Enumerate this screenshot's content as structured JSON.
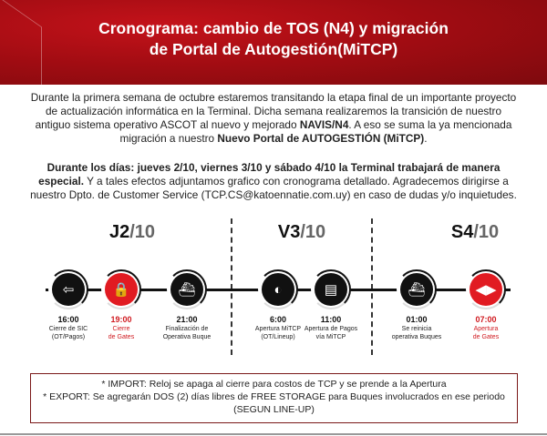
{
  "header": {
    "title_line1": "Cronograma: cambio de TOS (N4) y migración",
    "title_line2": "de Portal de Autogestión(MiTCP)"
  },
  "intro": {
    "text1": "Durante la primera semana de octubre estaremos transitando la etapa final de un importante proyecto de actualización informática en la Terminal. Dicha semana realizaremos la transición de nuestro antiguo sistema operativo ASCOT al nuevo y mejorado ",
    "bold1": "NAVIS/N4",
    "text2": ". A eso se suma la ya mencionada migración a nuestro ",
    "bold2": "Nuevo Portal de AUTOGESTIÓN (MiTCP)",
    "text3": "."
  },
  "notice": {
    "bold": "Durante los días: jueves 2/10, viernes 3/10 y sábado 4/10 la Terminal trabajará de manera especial.",
    "text": " Y a tales efectos adjuntamos grafico con cronograma detallado. Agradecemos dirigirse a nuestro Dpto. de Customer Service (TCP.CS@katoennatie.com.uy) en caso de dudas y/o inquietudes."
  },
  "days": [
    {
      "day": "J2",
      "month": "/10"
    },
    {
      "day": "V3",
      "month": "/10"
    },
    {
      "day": "S4",
      "month": "/10"
    }
  ],
  "events": [
    {
      "time": "16:00",
      "line1": "Cierre de SIC",
      "line2": "(OT/Pagos)",
      "icon": "exit-door-icon",
      "glyph": "⇦"
    },
    {
      "time": "19:00",
      "line1": "Cierre",
      "line2": "de Gates",
      "icon": "lock-icon",
      "glyph": "🔒"
    },
    {
      "time": "21:00",
      "line1": "Finalización de",
      "line2": "Operativa Buque",
      "icon": "ship-icon",
      "glyph": "⛴"
    },
    {
      "time": "6:00",
      "line1": "Apertura MiTCP",
      "line2": "(OT/Lineup)",
      "icon": "toggle-icon",
      "glyph": "◐"
    },
    {
      "time": "11:00",
      "line1": "Apertura de Pagos",
      "line2": "vía MiTCP",
      "icon": "document-icon",
      "glyph": "▤"
    },
    {
      "time": "01:00",
      "line1": "Se reinicia",
      "line2": "operativa Buques",
      "icon": "ship-icon",
      "glyph": "⛴"
    },
    {
      "time": "07:00",
      "line1": "Apertura",
      "line2": "de Gates",
      "icon": "arrows-open-icon",
      "glyph": "◀▶"
    }
  ],
  "note": {
    "line1": "* IMPORT: Reloj se apaga al cierre para costos de TCP y se prende a la Apertura",
    "line2": "* EXPORT: Se agregarán DOS (2) días libres de FREE STORAGE para Buques involucrados en ese periodo (SEGUN LINE-UP)"
  },
  "colors": {
    "brand_red": "#c4121a",
    "highlight": "#e11b22"
  }
}
